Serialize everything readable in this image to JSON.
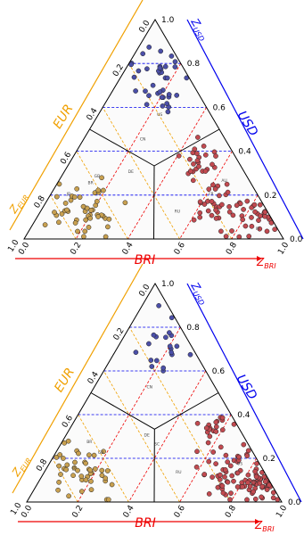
{
  "colors": {
    "usd": "#0000ee",
    "eur": "#f0a000",
    "bri": "#ee0000",
    "usd_point": "#4b4fa8",
    "eur_point": "#c8a050",
    "bri_point": "#c24a50",
    "region_line": "#000000"
  },
  "chart_data": [
    {
      "type": "scatter",
      "subtype": "ternary",
      "axes": {
        "usd": {
          "label": "USD",
          "z_label": "Z",
          "z_sub": "USD",
          "ticks": [
            "0.0",
            "0.2",
            "0.4",
            "0.6",
            "0.8",
            "1.0"
          ]
        },
        "eur": {
          "label": "EUR",
          "z_label": "Z",
          "z_sub": "EUR",
          "ticks": [
            "0.0",
            "0.2",
            "0.4",
            "0.6",
            "0.8",
            "1.0"
          ]
        },
        "bri": {
          "label": "BRI",
          "z_label": "Z",
          "z_sub": "BRI",
          "ticks": [
            "0.0",
            "0.2",
            "0.4",
            "0.6",
            "0.8",
            "1.0"
          ]
        }
      },
      "grid": true,
      "clusters": [
        {
          "color_key": "usd_point",
          "count": 38,
          "mean": [
            0.72,
            0.13,
            0.15
          ],
          "spread": 0.07
        },
        {
          "color_key": "eur_point",
          "count": 48,
          "mean": [
            0.12,
            0.7,
            0.18
          ],
          "spread": 0.07
        },
        {
          "color_key": "bri_point",
          "count": 26,
          "mean": [
            0.34,
            0.15,
            0.51
          ],
          "spread": 0.05
        },
        {
          "color_key": "bri_point",
          "count": 40,
          "mean": [
            0.13,
            0.18,
            0.69
          ],
          "spread": 0.07
        },
        {
          "color_key": "bri_point",
          "count": 24,
          "mean": [
            0.12,
            0.05,
            0.83
          ],
          "spread": 0.05
        }
      ],
      "country_labels": [
        {
          "text": "BR",
          "v": [
            0.25,
            0.62,
            0.13
          ]
        },
        {
          "text": "US",
          "v": [
            0.56,
            0.2,
            0.24
          ]
        },
        {
          "text": "CN",
          "v": [
            0.45,
            0.32,
            0.23
          ]
        },
        {
          "text": "GB",
          "v": [
            0.28,
            0.58,
            0.14
          ]
        },
        {
          "text": "JP",
          "v": [
            0.2,
            0.73,
            0.07
          ]
        },
        {
          "text": "DE",
          "v": [
            0.3,
            0.44,
            0.26
          ]
        },
        {
          "text": "RU",
          "v": [
            0.12,
            0.35,
            0.53
          ]
        },
        {
          "text": "FR",
          "v": [
            0.2,
            0.18,
            0.62
          ]
        },
        {
          "text": "IN",
          "v": [
            0.04,
            0.08,
            0.88
          ]
        },
        {
          "text": "AU",
          "v": [
            0.26,
            0.1,
            0.64
          ]
        }
      ]
    },
    {
      "type": "scatter",
      "subtype": "ternary",
      "axes": {
        "usd": {
          "label": "USD",
          "z_label": "Z",
          "z_sub": "USD",
          "ticks": [
            "0.0",
            "0.2",
            "0.4",
            "0.6",
            "0.8",
            "1.0"
          ]
        },
        "eur": {
          "label": "EUR",
          "z_label": "Z",
          "z_sub": "EUR",
          "ticks": [
            "0.0",
            "0.2",
            "0.4",
            "0.6",
            "0.8",
            "1.0"
          ]
        },
        "bri": {
          "label": "BRI",
          "z_label": "Z",
          "z_sub": "BRI",
          "ticks": [
            "0.0",
            "0.2",
            "0.4",
            "0.6",
            "0.8",
            "1.0"
          ]
        }
      },
      "grid": true,
      "clusters": [
        {
          "color_key": "usd_point",
          "count": 20,
          "mean": [
            0.7,
            0.14,
            0.16
          ],
          "spread": 0.07
        },
        {
          "color_key": "eur_point",
          "count": 44,
          "mean": [
            0.14,
            0.7,
            0.16
          ],
          "spread": 0.08
        },
        {
          "color_key": "bri_point",
          "count": 22,
          "mean": [
            0.33,
            0.1,
            0.57
          ],
          "spread": 0.05
        },
        {
          "color_key": "bri_point",
          "count": 55,
          "mean": [
            0.12,
            0.14,
            0.74
          ],
          "spread": 0.07
        },
        {
          "color_key": "bri_point",
          "count": 40,
          "mean": [
            0.08,
            0.04,
            0.88
          ],
          "spread": 0.04
        }
      ],
      "country_labels": [
        {
          "text": "CN",
          "v": [
            0.52,
            0.26,
            0.22
          ]
        },
        {
          "text": "BR",
          "v": [
            0.27,
            0.62,
            0.11
          ]
        },
        {
          "text": "DE",
          "v": [
            0.3,
            0.38,
            0.32
          ]
        },
        {
          "text": "SC",
          "v": [
            0.26,
            0.36,
            0.38
          ]
        },
        {
          "text": "GB",
          "v": [
            0.22,
            0.6,
            0.18
          ]
        },
        {
          "text": "RU",
          "v": [
            0.13,
            0.34,
            0.53
          ]
        },
        {
          "text": "US",
          "v": [
            0.17,
            0.08,
            0.75
          ]
        },
        {
          "text": "AU",
          "v": [
            0.09,
            0.06,
            0.85
          ]
        },
        {
          "text": "JP",
          "v": [
            0.15,
            0.74,
            0.11
          ]
        }
      ]
    }
  ]
}
